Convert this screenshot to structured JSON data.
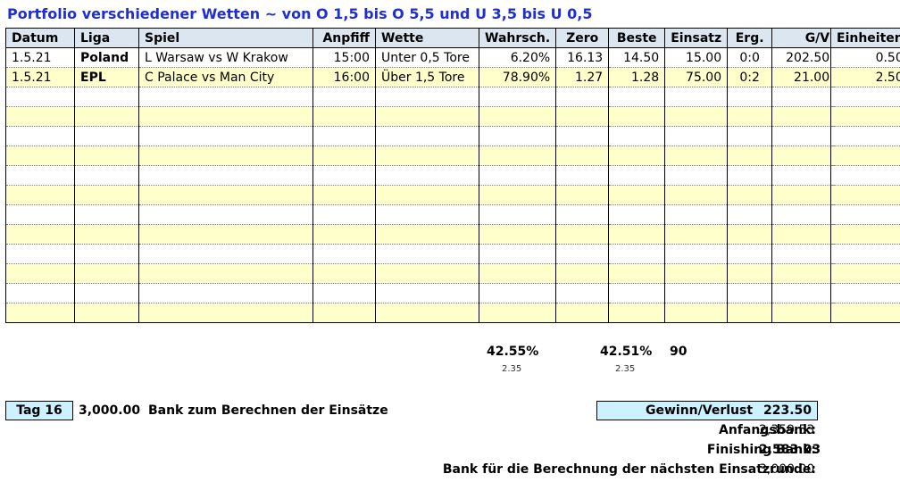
{
  "title": "Portfolio verschiedener Wetten ~ von O 1,5 bis O 5,5 und U 3,5 bis U 0,5",
  "headers": [
    "Datum",
    "Liga",
    "Spiel",
    "Anpfiff",
    "Wette",
    "Wahrsch.",
    "Zero",
    "Beste",
    "Einsatz",
    "Erg.",
    "G/V"
  ],
  "units_header": "Einheiten",
  "rows": [
    {
      "datum": "1.5.21",
      "liga": "Poland",
      "spiel": "L Warsaw vs W Krakow",
      "anpfiff": "15:00",
      "wette": "Unter 0,5 Tore",
      "wahrsch": "6.20%",
      "zero": "16.13",
      "beste": "14.50",
      "einsatz": "15.00",
      "erg": "0:0",
      "gv": "202.50",
      "einheiten": "0.50"
    },
    {
      "datum": "1.5.21",
      "liga": "EPL",
      "spiel": "C Palace vs Man City",
      "anpfiff": "16:00",
      "wette": "Über 1,5 Tore",
      "wahrsch": "78.90%",
      "zero": "1.27",
      "beste": "1.28",
      "einsatz": "75.00",
      "erg": "0:2",
      "gv": "21.00",
      "einheiten": "2.50"
    }
  ],
  "empty_rows": 12,
  "summary": {
    "wahrsch_total": "42.55%",
    "wahrsch_sub": "2.35",
    "beste_total": "42.51%",
    "beste_sub": "2.35",
    "einsatz_total": "90"
  },
  "footer": {
    "tag_label": "Tag 16",
    "bank_amount": "3,000.00",
    "bank_label": "Bank zum Berechnen der Einsätze",
    "gv_label": "Gewinn/Verlust",
    "gv_value": "223.50",
    "anfangsbank_label": "Anfangsbank:",
    "anfangsbank_value": "2,359.53",
    "finishing_label": "Finishing Bank:",
    "finishing_value": "2,583.03",
    "next_label": "Bank für die Berechnung der nächsten Einsatzrunde:",
    "next_value": "3,000.00"
  },
  "colors": {
    "title": "#1f2fd6",
    "header_bg": "#dce6f1",
    "row_alt": "#ffffcc",
    "box_bg": "#ccf2ff"
  }
}
